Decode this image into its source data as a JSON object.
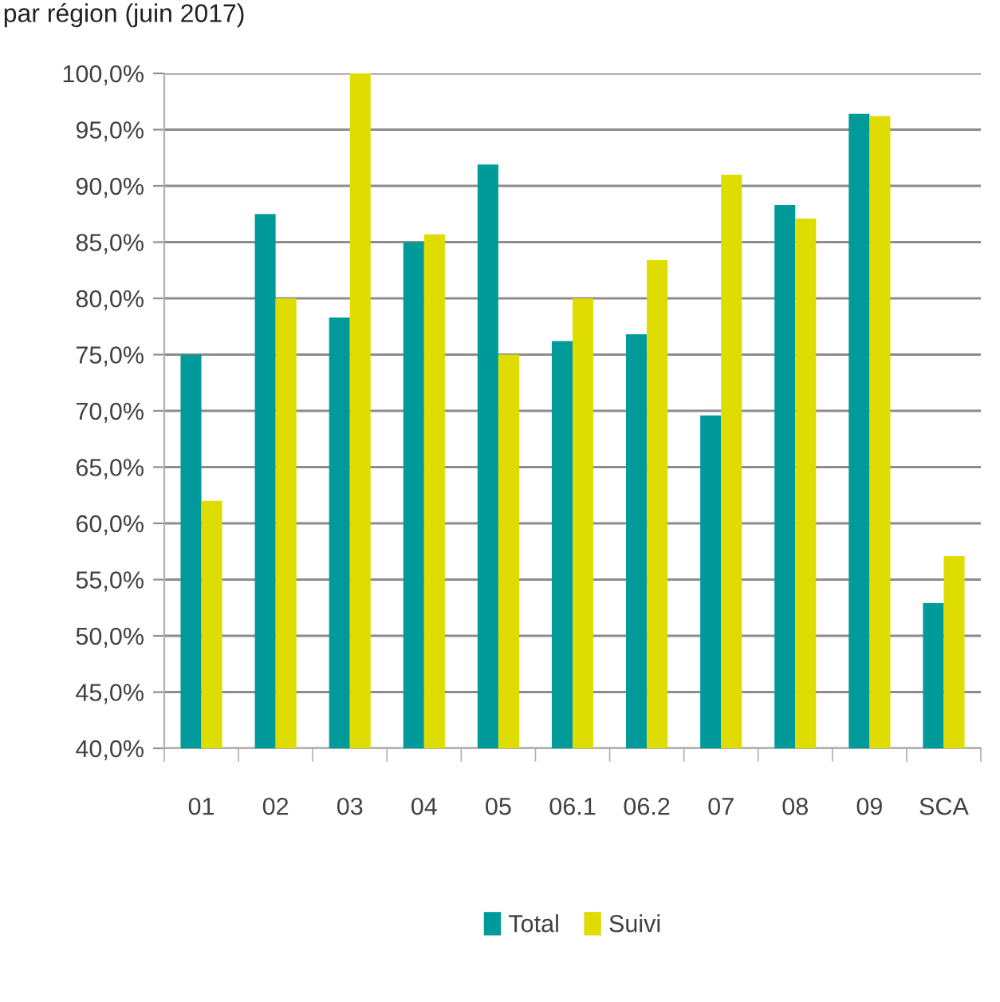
{
  "chart_data": {
    "type": "bar",
    "title": "par région (juin 2017)",
    "categories": [
      "01",
      "02",
      "03",
      "04",
      "05",
      "06.1",
      "06.2",
      "07",
      "08",
      "09",
      "SCA"
    ],
    "series": [
      {
        "name": "Total",
        "color": "#009a9a",
        "values": [
          75.0,
          87.5,
          78.3,
          85.0,
          91.9,
          76.2,
          76.8,
          69.6,
          88.3,
          96.4,
          52.9
        ]
      },
      {
        "name": "Suivi",
        "color": "#dedc00",
        "values": [
          62.0,
          80.0,
          100.0,
          85.7,
          75.0,
          80.0,
          83.4,
          91.0,
          87.1,
          96.2,
          57.1
        ]
      }
    ],
    "ylim": [
      40,
      100
    ],
    "yticks": [
      {
        "value": 40,
        "label": "40,0%"
      },
      {
        "value": 45,
        "label": "45,0%"
      },
      {
        "value": 50,
        "label": "50,0%"
      },
      {
        "value": 55,
        "label": "55,0%"
      },
      {
        "value": 60,
        "label": "60,0%"
      },
      {
        "value": 65,
        "label": "65,0%"
      },
      {
        "value": 70,
        "label": "70,0%"
      },
      {
        "value": 75,
        "label": "75,0%"
      },
      {
        "value": 80,
        "label": "80,0%"
      },
      {
        "value": 85,
        "label": "85,0%"
      },
      {
        "value": 90,
        "label": "90,0%"
      },
      {
        "value": 95,
        "label": "95,0%"
      },
      {
        "value": 100,
        "label": "100,0%"
      }
    ],
    "grid": "y",
    "legend": "bottom"
  }
}
